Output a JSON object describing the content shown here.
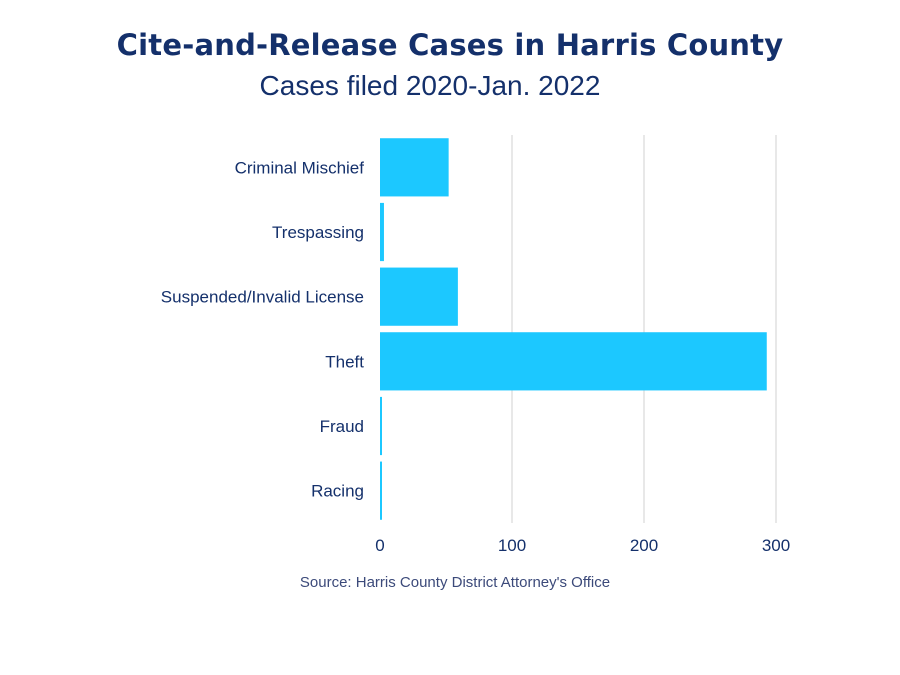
{
  "chart_data": {
    "type": "bar",
    "orientation": "horizontal",
    "title": "Cite-and-Release Cases in Harris County",
    "subtitle": "Cases filed 2020-Jan. 2022",
    "categories": [
      "Criminal Mischief",
      "Trespassing",
      "Suspended/Invalid License",
      "Theft",
      "Fraud",
      "Racing"
    ],
    "values": [
      52,
      3,
      59,
      293,
      1,
      1
    ],
    "xticks": [
      0,
      100,
      200,
      300
    ],
    "xlim": [
      0,
      300
    ],
    "xlabel": "",
    "ylabel": "",
    "grid": true,
    "bar_color": "#1cc8ff",
    "source": "Source: Harris County District Attorney's Office"
  }
}
